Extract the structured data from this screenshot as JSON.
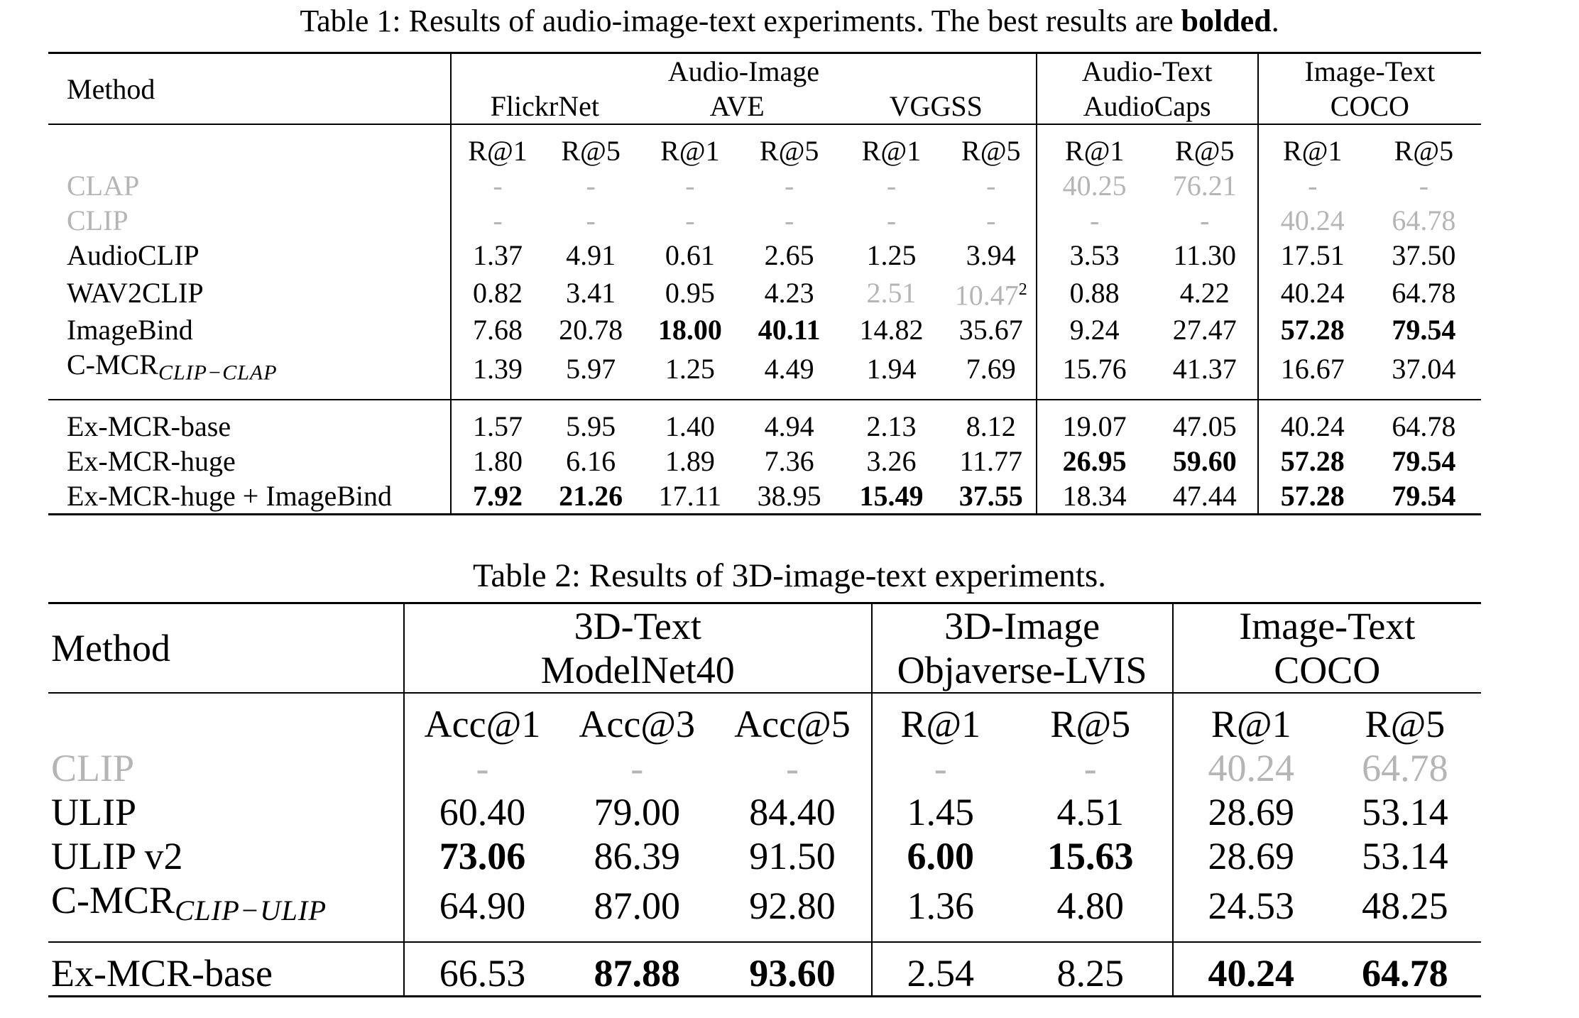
{
  "table1": {
    "caption_prefix": "Table 1: Results of audio-image-text experiments. The best results are ",
    "caption_bold": "bolded",
    "caption_suffix": ".",
    "method_header": "Method",
    "groups": {
      "audio_image": "Audio-Image",
      "audio_text": "Audio-Text",
      "image_text": "Image-Text"
    },
    "datasets": {
      "flickrnet": "FlickrNet",
      "ave": "AVE",
      "vggss": "VGGSS",
      "audiocaps": "AudioCaps",
      "coco": "COCO"
    },
    "metrics": [
      "R@1",
      "R@5",
      "R@1",
      "R@5",
      "R@1",
      "R@5",
      "R@1",
      "R@5",
      "R@1",
      "R@5"
    ],
    "rows": [
      {
        "method": "CLAP",
        "gray": true,
        "values": [
          "-",
          "-",
          "-",
          "-",
          "-",
          "-",
          "40.25",
          "76.21",
          "-",
          "-"
        ],
        "bold": []
      },
      {
        "method": "CLIP",
        "gray": true,
        "values": [
          "-",
          "-",
          "-",
          "-",
          "-",
          "-",
          "-",
          "-",
          "40.24",
          "64.78"
        ],
        "bold": []
      },
      {
        "method": "AudioCLIP",
        "values": [
          "1.37",
          "4.91",
          "0.61",
          "2.65",
          "1.25",
          "3.94",
          "3.53",
          "11.30",
          "17.51",
          "37.50"
        ],
        "bold": []
      },
      {
        "method": "WAV2CLIP",
        "values": [
          "0.82",
          "3.41",
          "0.95",
          "4.23",
          "2.51",
          "10.47",
          "0.88",
          "4.22",
          "40.24",
          "64.78"
        ],
        "bold": [],
        "gray_cells": [
          4,
          5
        ],
        "footnote_cell": 5,
        "footnote": "2"
      },
      {
        "method": "ImageBind",
        "values": [
          "7.68",
          "20.78",
          "18.00",
          "40.11",
          "14.82",
          "35.67",
          "9.24",
          "27.47",
          "57.28",
          "79.54"
        ],
        "bold": [
          2,
          3,
          8,
          9
        ]
      },
      {
        "method": "C-MCR",
        "method_sub": "CLIP−CLAP",
        "values": [
          "1.39",
          "5.97",
          "1.25",
          "4.49",
          "1.94",
          "7.69",
          "15.76",
          "41.37",
          "16.67",
          "37.04"
        ],
        "bold": []
      },
      {
        "method": "Ex-MCR-base",
        "values": [
          "1.57",
          "5.95",
          "1.40",
          "4.94",
          "2.13",
          "8.12",
          "19.07",
          "47.05",
          "40.24",
          "64.78"
        ],
        "bold": []
      },
      {
        "method": "Ex-MCR-huge",
        "values": [
          "1.80",
          "6.16",
          "1.89",
          "7.36",
          "3.26",
          "11.77",
          "26.95",
          "59.60",
          "57.28",
          "79.54"
        ],
        "bold": [
          6,
          7,
          8,
          9
        ]
      },
      {
        "method": "Ex-MCR-huge + ImageBind",
        "values": [
          "7.92",
          "21.26",
          "17.11",
          "38.95",
          "15.49",
          "37.55",
          "18.34",
          "47.44",
          "57.28",
          "79.54"
        ],
        "bold": [
          0,
          1,
          4,
          5,
          8,
          9
        ]
      }
    ]
  },
  "table2": {
    "caption": "Table 2: Results of 3D-image-text experiments.",
    "method_header": "Method",
    "groups": {
      "d3_text": "3D-Text",
      "d3_image": "3D-Image",
      "image_text": "Image-Text"
    },
    "datasets": {
      "modelnet40": "ModelNet40",
      "objaverse": "Objaverse-LVIS",
      "coco": "COCO"
    },
    "metrics": [
      "Acc@1",
      "Acc@3",
      "Acc@5",
      "R@1",
      "R@5",
      "R@1",
      "R@5"
    ],
    "rows": [
      {
        "method": "CLIP",
        "gray": true,
        "values": [
          "-",
          "-",
          "-",
          "-",
          "-",
          "40.24",
          "64.78"
        ],
        "bold": []
      },
      {
        "method": "ULIP",
        "values": [
          "60.40",
          "79.00",
          "84.40",
          "1.45",
          "4.51",
          "28.69",
          "53.14"
        ],
        "bold": []
      },
      {
        "method": "ULIP v2",
        "values": [
          "73.06",
          "86.39",
          "91.50",
          "6.00",
          "15.63",
          "28.69",
          "53.14"
        ],
        "bold": [
          0,
          3,
          4
        ]
      },
      {
        "method": "C-MCR",
        "method_sub": "CLIP−ULIP",
        "values": [
          "64.90",
          "87.00",
          "92.80",
          "1.36",
          "4.80",
          "24.53",
          "48.25"
        ],
        "bold": []
      },
      {
        "method": "Ex-MCR-base",
        "values": [
          "66.53",
          "87.88",
          "93.60",
          "2.54",
          "8.25",
          "40.24",
          "64.78"
        ],
        "bold": [
          1,
          2,
          5,
          6
        ]
      }
    ]
  }
}
